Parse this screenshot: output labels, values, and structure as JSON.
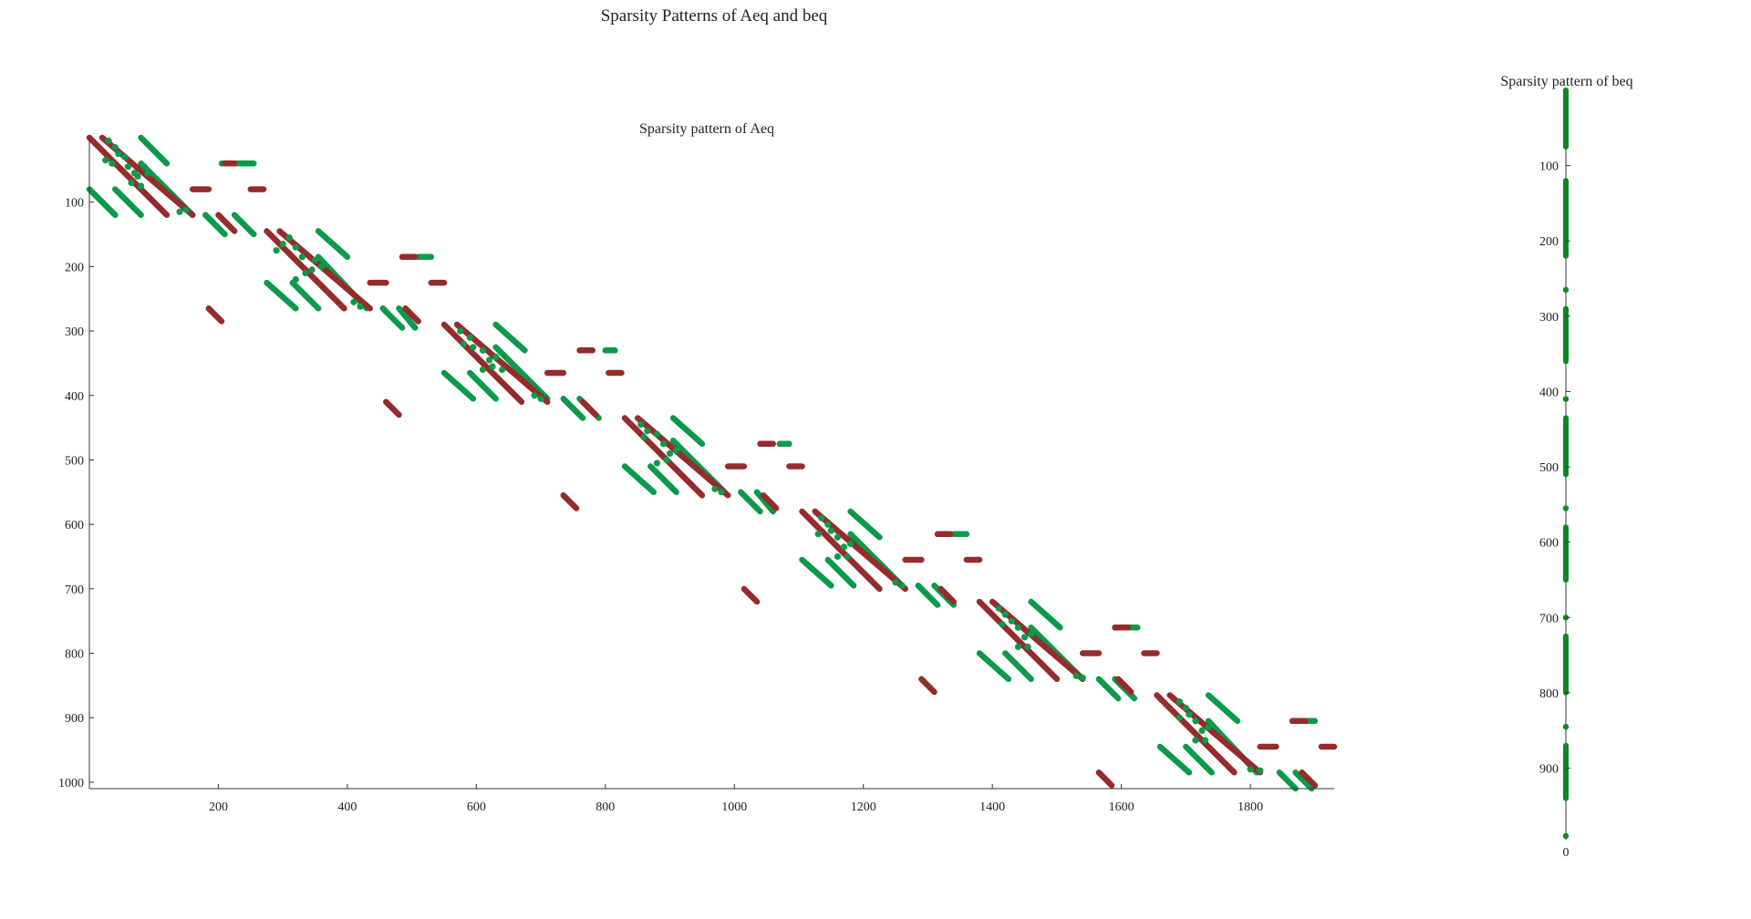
{
  "figure": {
    "title": "Sparsity Patterns of Aeq and beq"
  },
  "chart_data": [
    {
      "type": "scatter",
      "title": "Sparsity pattern of Aeq",
      "xlabel": "",
      "ylabel": "",
      "xlim": [
        0,
        1930
      ],
      "ylim": [
        1010,
        0
      ],
      "y_inverted": true,
      "xticks": [
        200,
        400,
        600,
        800,
        1000,
        1200,
        1400,
        1600,
        1800
      ],
      "yticks": [
        100,
        200,
        300,
        400,
        500,
        600,
        700,
        800,
        900,
        1000
      ],
      "grid": false,
      "colors": {
        "green": "#0a9a4a",
        "red": "#962b2b"
      },
      "segments": {
        "green": [
          [
            0,
            80,
            40,
            120
          ],
          [
            40,
            80,
            80,
            120
          ],
          [
            80,
            40,
            160,
            120
          ],
          [
            80,
            0,
            120,
            40
          ],
          [
            180,
            120,
            210,
            150
          ],
          [
            225,
            120,
            255,
            150
          ],
          [
            275,
            225,
            320,
            265
          ],
          [
            315,
            225,
            355,
            265
          ],
          [
            355,
            185,
            430,
            265
          ],
          [
            355,
            145,
            400,
            185
          ],
          [
            455,
            265,
            485,
            295
          ],
          [
            480,
            265,
            505,
            295
          ],
          [
            550,
            365,
            595,
            405
          ],
          [
            590,
            365,
            630,
            405
          ],
          [
            630,
            325,
            710,
            405
          ],
          [
            630,
            290,
            675,
            330
          ],
          [
            735,
            405,
            765,
            435
          ],
          [
            760,
            405,
            790,
            435
          ],
          [
            830,
            510,
            875,
            550
          ],
          [
            870,
            510,
            910,
            550
          ],
          [
            905,
            470,
            985,
            550
          ],
          [
            905,
            435,
            950,
            475
          ],
          [
            1010,
            550,
            1040,
            580
          ],
          [
            1035,
            550,
            1060,
            580
          ],
          [
            1105,
            655,
            1150,
            695
          ],
          [
            1145,
            655,
            1185,
            695
          ],
          [
            1180,
            615,
            1260,
            695
          ],
          [
            1180,
            580,
            1225,
            620
          ],
          [
            1285,
            695,
            1315,
            725
          ],
          [
            1310,
            695,
            1340,
            725
          ],
          [
            1380,
            800,
            1425,
            840
          ],
          [
            1420,
            800,
            1460,
            840
          ],
          [
            1460,
            760,
            1540,
            840
          ],
          [
            1460,
            720,
            1505,
            760
          ],
          [
            1565,
            840,
            1595,
            870
          ],
          [
            1590,
            840,
            1620,
            870
          ],
          [
            1660,
            945,
            1705,
            985
          ],
          [
            1700,
            945,
            1740,
            985
          ],
          [
            1735,
            905,
            1810,
            985
          ],
          [
            1735,
            865,
            1780,
            905
          ],
          [
            1845,
            985,
            1870,
            1010
          ],
          [
            1870,
            985,
            1895,
            1010
          ],
          [
            205,
            40,
            255,
            40
          ],
          [
            510,
            185,
            530,
            185
          ],
          [
            800,
            330,
            815,
            330
          ],
          [
            1070,
            475,
            1085,
            475
          ],
          [
            1340,
            615,
            1360,
            615
          ],
          [
            1610,
            760,
            1625,
            760
          ],
          [
            1885,
            905,
            1900,
            905
          ]
        ],
        "red": [
          [
            0,
            0,
            120,
            120
          ],
          [
            20,
            0,
            160,
            120
          ],
          [
            160,
            80,
            185,
            80
          ],
          [
            210,
            40,
            225,
            40
          ],
          [
            250,
            80,
            270,
            80
          ],
          [
            200,
            120,
            225,
            145
          ],
          [
            185,
            265,
            205,
            285
          ],
          [
            275,
            145,
            395,
            265
          ],
          [
            295,
            145,
            435,
            265
          ],
          [
            435,
            225,
            460,
            225
          ],
          [
            485,
            185,
            505,
            185
          ],
          [
            530,
            225,
            550,
            225
          ],
          [
            490,
            265,
            510,
            285
          ],
          [
            460,
            410,
            480,
            430
          ],
          [
            550,
            290,
            670,
            410
          ],
          [
            570,
            290,
            710,
            410
          ],
          [
            710,
            365,
            735,
            365
          ],
          [
            760,
            330,
            780,
            330
          ],
          [
            805,
            365,
            825,
            365
          ],
          [
            765,
            410,
            785,
            430
          ],
          [
            735,
            555,
            755,
            575
          ],
          [
            830,
            435,
            950,
            555
          ],
          [
            850,
            435,
            990,
            555
          ],
          [
            990,
            510,
            1015,
            510
          ],
          [
            1040,
            475,
            1060,
            475
          ],
          [
            1085,
            510,
            1105,
            510
          ],
          [
            1045,
            555,
            1065,
            575
          ],
          [
            1015,
            700,
            1035,
            720
          ],
          [
            1105,
            580,
            1225,
            700
          ],
          [
            1125,
            580,
            1265,
            700
          ],
          [
            1265,
            655,
            1290,
            655
          ],
          [
            1315,
            615,
            1335,
            615
          ],
          [
            1360,
            655,
            1380,
            655
          ],
          [
            1320,
            700,
            1340,
            720
          ],
          [
            1290,
            840,
            1310,
            860
          ],
          [
            1380,
            720,
            1500,
            840
          ],
          [
            1400,
            720,
            1540,
            840
          ],
          [
            1540,
            800,
            1565,
            800
          ],
          [
            1590,
            760,
            1610,
            760
          ],
          [
            1635,
            800,
            1655,
            800
          ],
          [
            1595,
            840,
            1615,
            860
          ],
          [
            1565,
            985,
            1585,
            1005
          ],
          [
            1655,
            865,
            1775,
            985
          ],
          [
            1675,
            865,
            1815,
            985
          ],
          [
            1815,
            945,
            1840,
            945
          ],
          [
            1865,
            905,
            1885,
            905
          ],
          [
            1910,
            945,
            1930,
            945
          ],
          [
            1880,
            985,
            1900,
            1005
          ]
        ]
      },
      "blobs": {
        "green": [
          [
            30,
            5
          ],
          [
            40,
            15
          ],
          [
            45,
            25
          ],
          [
            25,
            35
          ],
          [
            35,
            40
          ],
          [
            55,
            30
          ],
          [
            60,
            45
          ],
          [
            70,
            55
          ],
          [
            75,
            60
          ],
          [
            85,
            45
          ],
          [
            90,
            55
          ],
          [
            65,
            70
          ],
          [
            80,
            75
          ],
          [
            140,
            115
          ],
          [
            150,
            112
          ],
          [
            300,
            165
          ],
          [
            310,
            155
          ],
          [
            290,
            175
          ],
          [
            320,
            170
          ],
          [
            330,
            185
          ],
          [
            350,
            190
          ],
          [
            345,
            205
          ],
          [
            360,
            200
          ],
          [
            335,
            210
          ],
          [
            320,
            220
          ],
          [
            410,
            255
          ],
          [
            420,
            262
          ],
          [
            575,
            300
          ],
          [
            590,
            310
          ],
          [
            595,
            325
          ],
          [
            580,
            320
          ],
          [
            610,
            330
          ],
          [
            620,
            345
          ],
          [
            630,
            340
          ],
          [
            625,
            355
          ],
          [
            640,
            360
          ],
          [
            610,
            360
          ],
          [
            690,
            400
          ],
          [
            700,
            405
          ],
          [
            855,
            445
          ],
          [
            865,
            455
          ],
          [
            880,
            460
          ],
          [
            860,
            465
          ],
          [
            890,
            475
          ],
          [
            900,
            490
          ],
          [
            910,
            485
          ],
          [
            895,
            500
          ],
          [
            880,
            505
          ],
          [
            970,
            545
          ],
          [
            980,
            550
          ],
          [
            1135,
            590
          ],
          [
            1145,
            600
          ],
          [
            1150,
            610
          ],
          [
            1130,
            615
          ],
          [
            1160,
            620
          ],
          [
            1170,
            635
          ],
          [
            1180,
            630
          ],
          [
            1175,
            650
          ],
          [
            1160,
            650
          ],
          [
            1250,
            690
          ],
          [
            1260,
            695
          ],
          [
            1410,
            730
          ],
          [
            1420,
            740
          ],
          [
            1430,
            750
          ],
          [
            1415,
            755
          ],
          [
            1440,
            760
          ],
          [
            1450,
            775
          ],
          [
            1460,
            770
          ],
          [
            1455,
            790
          ],
          [
            1440,
            790
          ],
          [
            1530,
            835
          ],
          [
            1540,
            838
          ],
          [
            1690,
            875
          ],
          [
            1700,
            885
          ],
          [
            1705,
            895
          ],
          [
            1690,
            900
          ],
          [
            1715,
            905
          ],
          [
            1725,
            920
          ],
          [
            1735,
            915
          ],
          [
            1730,
            935
          ],
          [
            1715,
            935
          ],
          [
            1800,
            980
          ],
          [
            1815,
            982
          ]
        ]
      }
    },
    {
      "type": "scatter",
      "title": "Sparsity pattern of beq",
      "xlabel": "",
      "ylabel": "",
      "xlim": [
        -1,
        1
      ],
      "ylim": [
        995,
        0
      ],
      "y_inverted": true,
      "xticks": [
        0
      ],
      "yticks": [
        100,
        200,
        300,
        400,
        500,
        600,
        700,
        800,
        900
      ],
      "grid": false,
      "color": "#0a8a1e",
      "runs": [
        [
          0,
          75
        ],
        [
          120,
          220
        ],
        [
          265,
          265
        ],
        [
          290,
          360
        ],
        [
          410,
          410
        ],
        [
          435,
          510
        ],
        [
          555,
          555
        ],
        [
          580,
          650
        ],
        [
          700,
          700
        ],
        [
          725,
          800
        ],
        [
          845,
          845
        ],
        [
          870,
          940
        ],
        [
          990,
          990
        ]
      ]
    }
  ]
}
